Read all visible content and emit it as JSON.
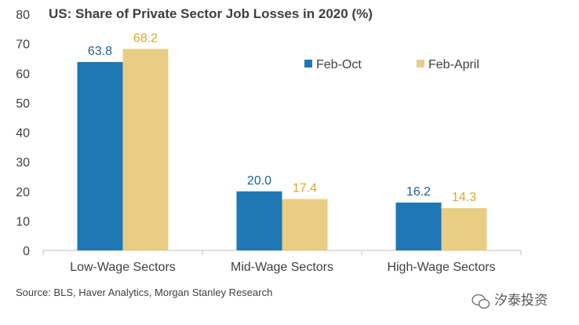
{
  "chart_data": {
    "type": "bar",
    "title": "US: Share of Private Sector Job Losses in 2020 (%)",
    "categories": [
      "Low-Wage Sectors",
      "Mid-Wage Sectors",
      "High-Wage Sectors"
    ],
    "series": [
      {
        "name": "Feb-Oct",
        "values": [
          63.8,
          20.0,
          16.2
        ],
        "labels": [
          "63.8",
          "20.0",
          "16.2"
        ],
        "color": "#1f77b4",
        "label_color": "#1f5f94"
      },
      {
        "name": "Feb-April",
        "values": [
          68.2,
          17.4,
          14.3
        ],
        "labels": [
          "68.2",
          "17.4",
          "14.3"
        ],
        "color": "#e8cd85",
        "label_color": "#d9a82e"
      }
    ],
    "ylim": [
      0,
      80
    ],
    "yticks": [
      0,
      10,
      20,
      30,
      40,
      50,
      60,
      70,
      80
    ],
    "grid": false,
    "legend_position": "top-right"
  },
  "source": "Source: BLS, Haver Analytics, Morgan Stanley Research",
  "watermark": {
    "text": "汐泰投资",
    "icon": "wechat-icon"
  }
}
